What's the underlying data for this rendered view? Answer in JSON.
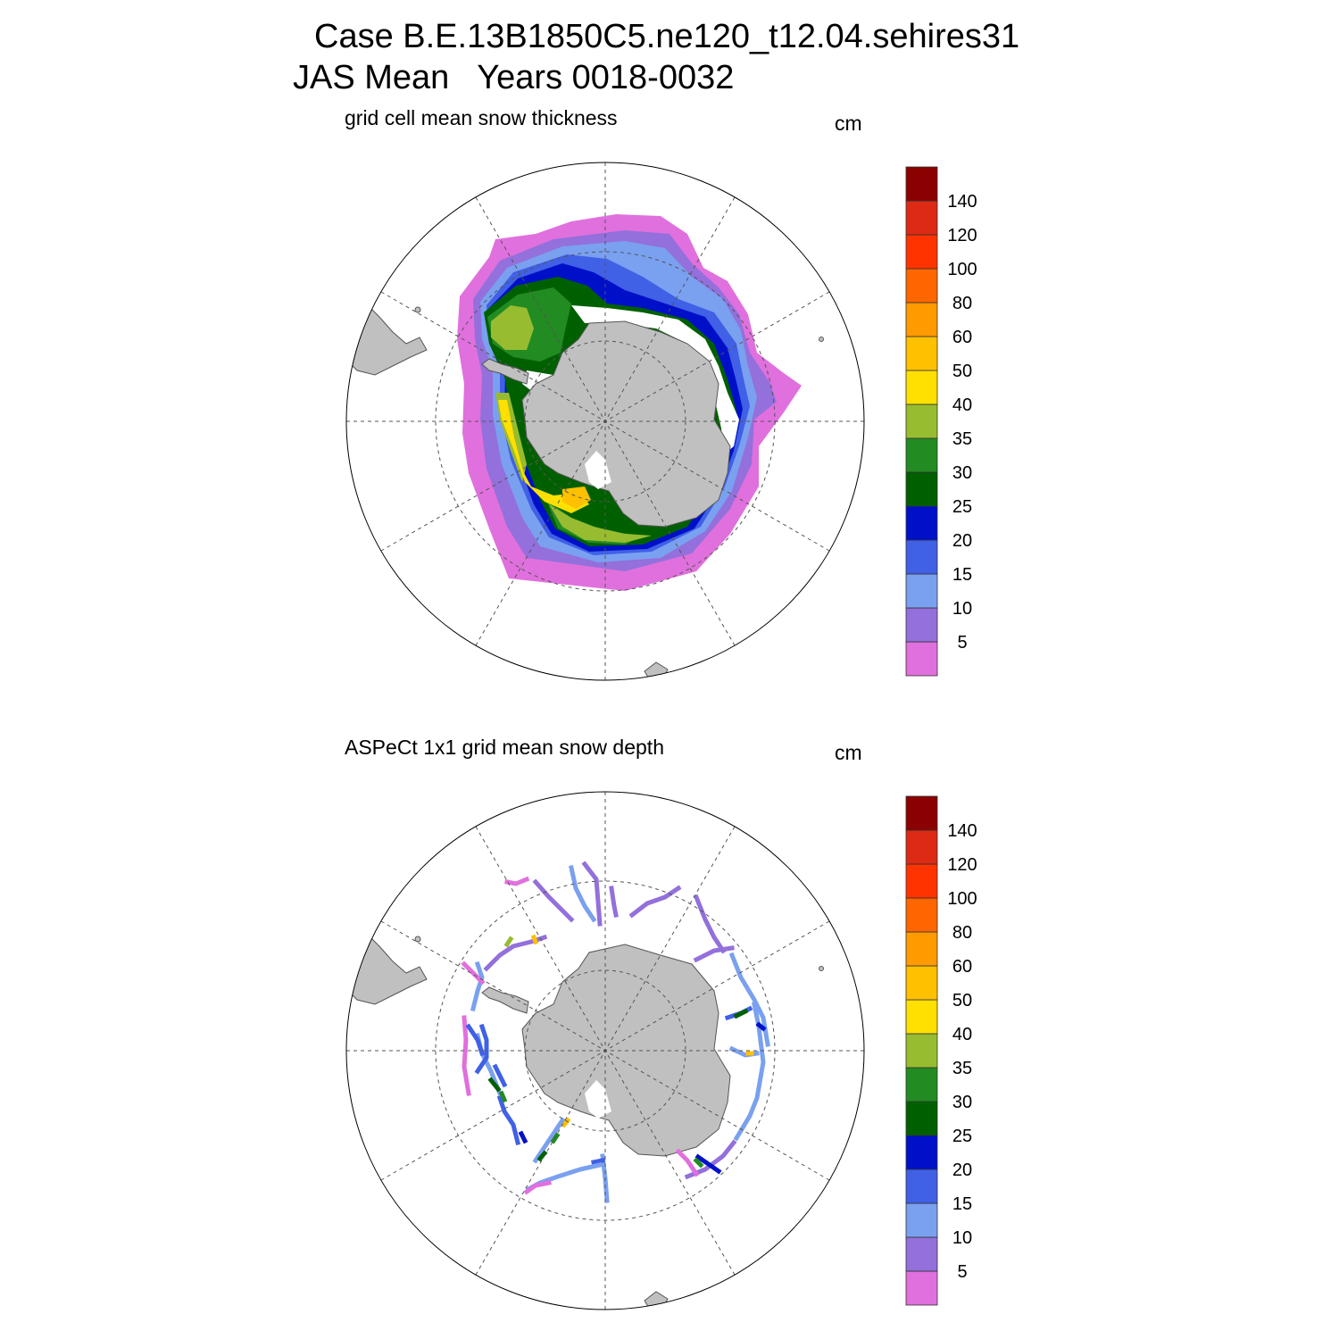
{
  "header": {
    "case_line": "Case B.E.13B1850C5.ne120_t12.04.sehires31",
    "period_line": "JAS Mean   Years 0018-0032"
  },
  "panels": [
    {
      "title": "grid cell mean snow thickness",
      "units": "cm"
    },
    {
      "title": "ASPeCt 1x1 grid mean snow depth",
      "units": "cm"
    }
  ],
  "colorbar": {
    "labels": [
      "5",
      "10",
      "15",
      "20",
      "25",
      "30",
      "35",
      "40",
      "50",
      "60",
      "80",
      "100",
      "120",
      "140"
    ],
    "colors": [
      "#e070dd",
      "#9370db",
      "#7aa0f0",
      "#4060e6",
      "#0010c8",
      "#006000",
      "#228b22",
      "#98bc30",
      "#ffe000",
      "#ffc000",
      "#ff9a00",
      "#ff6600",
      "#ff3300",
      "#dc2a14",
      "#8b0000"
    ]
  },
  "colors": {
    "land": "#c0c0c0",
    "grid": "#555555"
  }
}
